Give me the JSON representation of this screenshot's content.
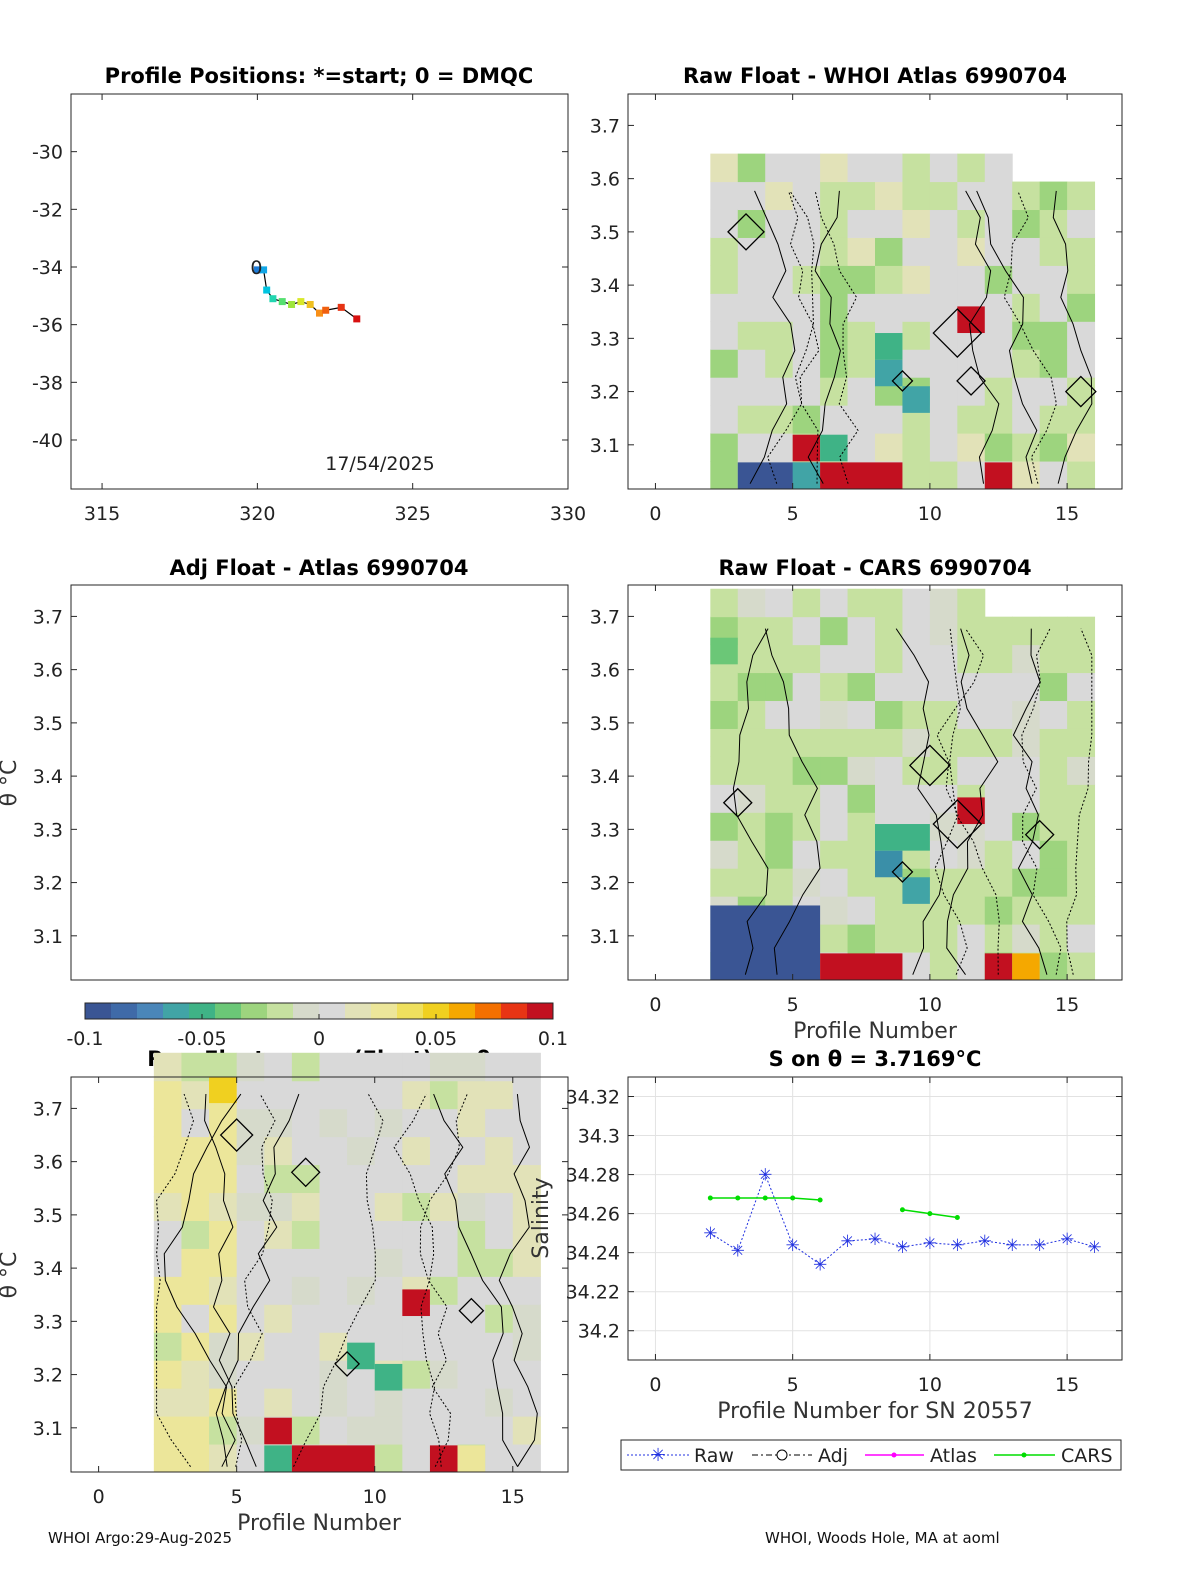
{
  "footer": {
    "left": "WHOI Argo:29-Aug-2025",
    "right": "WHOI, Woods Hole, MA at aoml"
  },
  "chart_data": [
    {
      "id": "positions",
      "type": "scatter",
      "title": "Profile Positions: *=start; 0 = DMQC",
      "xlim": [
        314,
        330
      ],
      "ylim": [
        -41.7,
        -28
      ],
      "xticks": [
        315,
        320,
        325,
        330
      ],
      "yticks": [
        -30,
        -32,
        -34,
        -36,
        -38,
        -40
      ],
      "annotation": "17/54/2025",
      "track": {
        "lon": [
          320.0,
          320.2,
          320.3,
          320.5,
          320.8,
          321.1,
          321.4,
          321.7,
          322.0,
          322.2,
          322.7,
          323.2
        ],
        "lat": [
          -34.1,
          -34.1,
          -34.8,
          -35.1,
          -35.2,
          -35.3,
          -35.2,
          -35.3,
          -35.6,
          -35.5,
          -35.4,
          -35.8
        ],
        "colors": [
          "#1e7cd8",
          "#12a6e6",
          "#00c4e0",
          "#22d6b0",
          "#55e070",
          "#9ee63c",
          "#d8e82a",
          "#f0c020",
          "#f89018",
          "#f06010",
          "#e63414",
          "#d81010"
        ]
      }
    },
    {
      "id": "raw-atlas",
      "type": "heatmap",
      "title": "Raw Float - WHOI Atlas  6990704",
      "xlim": [
        -1,
        17
      ],
      "ylim": [
        3.017,
        3.759
      ],
      "xticks": [
        0,
        5,
        10,
        15
      ],
      "yticks": [
        3.1,
        3.2,
        3.3,
        3.4,
        3.5,
        3.6,
        3.7
      ],
      "xlabel": ""
    },
    {
      "id": "adj-atlas",
      "type": "heatmap",
      "title": "Adj Float - Atlas  6990704",
      "xlim": [
        0,
        1
      ],
      "ylim": [
        3.017,
        3.759
      ],
      "xticks": [],
      "yticks": [
        3.1,
        3.2,
        3.3,
        3.4,
        3.5,
        3.6,
        3.7
      ],
      "ylabel": "θ °C"
    },
    {
      "id": "raw-cars",
      "type": "heatmap",
      "title": "Raw Float - CARS  6990704",
      "xlim": [
        -1,
        17
      ],
      "ylim": [
        3.017,
        3.759
      ],
      "xticks": [
        0,
        5,
        10,
        15
      ],
      "yticks": [
        3.1,
        3.2,
        3.3,
        3.4,
        3.5,
        3.6,
        3.7
      ],
      "xlabel": "Profile Number"
    },
    {
      "id": "raw-mean",
      "type": "heatmap",
      "title": "Raw Float - mean(Float) on θ",
      "xlim": [
        -1,
        17
      ],
      "ylim": [
        3.017,
        3.759
      ],
      "xticks": [
        0,
        5,
        10,
        15
      ],
      "yticks": [
        3.1,
        3.2,
        3.3,
        3.4,
        3.5,
        3.6,
        3.7
      ],
      "xlabel": "Profile Number",
      "ylabel": "θ °C"
    },
    {
      "id": "salinity",
      "type": "line",
      "title": "S on θ = 3.7169°C",
      "xlim": [
        -1,
        17
      ],
      "ylim": [
        34.185,
        34.33
      ],
      "xticks": [
        0,
        5,
        10,
        15
      ],
      "yticks": [
        34.2,
        34.22,
        34.24,
        34.26,
        34.28,
        34.3,
        34.32
      ],
      "ytick_labels": [
        "34.2",
        "34.22",
        "34.24",
        "34.26",
        "34.28",
        "34.3",
        "34.32"
      ],
      "xlabel": "Profile Number for SN 20557",
      "ylabel": "Salinity",
      "series": [
        {
          "name": "Raw",
          "color": "#2030e0",
          "x": [
            2,
            3,
            4,
            5,
            6,
            7,
            8,
            9,
            10,
            11,
            12,
            13,
            14,
            15,
            16
          ],
          "y": [
            34.25,
            34.241,
            34.28,
            34.244,
            34.234,
            34.246,
            34.247,
            34.243,
            34.245,
            34.244,
            34.246,
            34.244,
            34.244,
            34.247,
            34.243
          ]
        },
        {
          "name": "Adj",
          "color": "#000000",
          "x": [],
          "y": []
        },
        {
          "name": "Atlas",
          "color": "#ff00ff",
          "x": [],
          "y": []
        },
        {
          "name": "CARS",
          "color": "#00dd00",
          "segments": [
            {
              "x": [
                2,
                3,
                4,
                5,
                6
              ],
              "y": [
                34.268,
                34.268,
                34.268,
                34.268,
                34.267
              ]
            },
            {
              "x": [
                9,
                10,
                11
              ],
              "y": [
                34.262,
                34.26,
                34.258
              ]
            }
          ]
        }
      ],
      "legend": [
        "Raw",
        "Adj",
        "Atlas",
        "CARS"
      ]
    }
  ],
  "colorbar": {
    "ticks": [
      -0.1,
      -0.05,
      0,
      0.05,
      0.1
    ],
    "tick_labels": [
      "-0.1",
      "-0.05",
      "0",
      "0.05",
      "0.1"
    ],
    "colors": [
      "#3a5594",
      "#3f6aa8",
      "#4a86b9",
      "#41a4a6",
      "#3fb386",
      "#6bc777",
      "#9dd47e",
      "#c6e1a0",
      "#d6dacb",
      "#d9d9d9",
      "#e2e2b8",
      "#ece69a",
      "#efe05e",
      "#f0d020",
      "#f5a800",
      "#f47000",
      "#e83414",
      "#c21020"
    ]
  }
}
